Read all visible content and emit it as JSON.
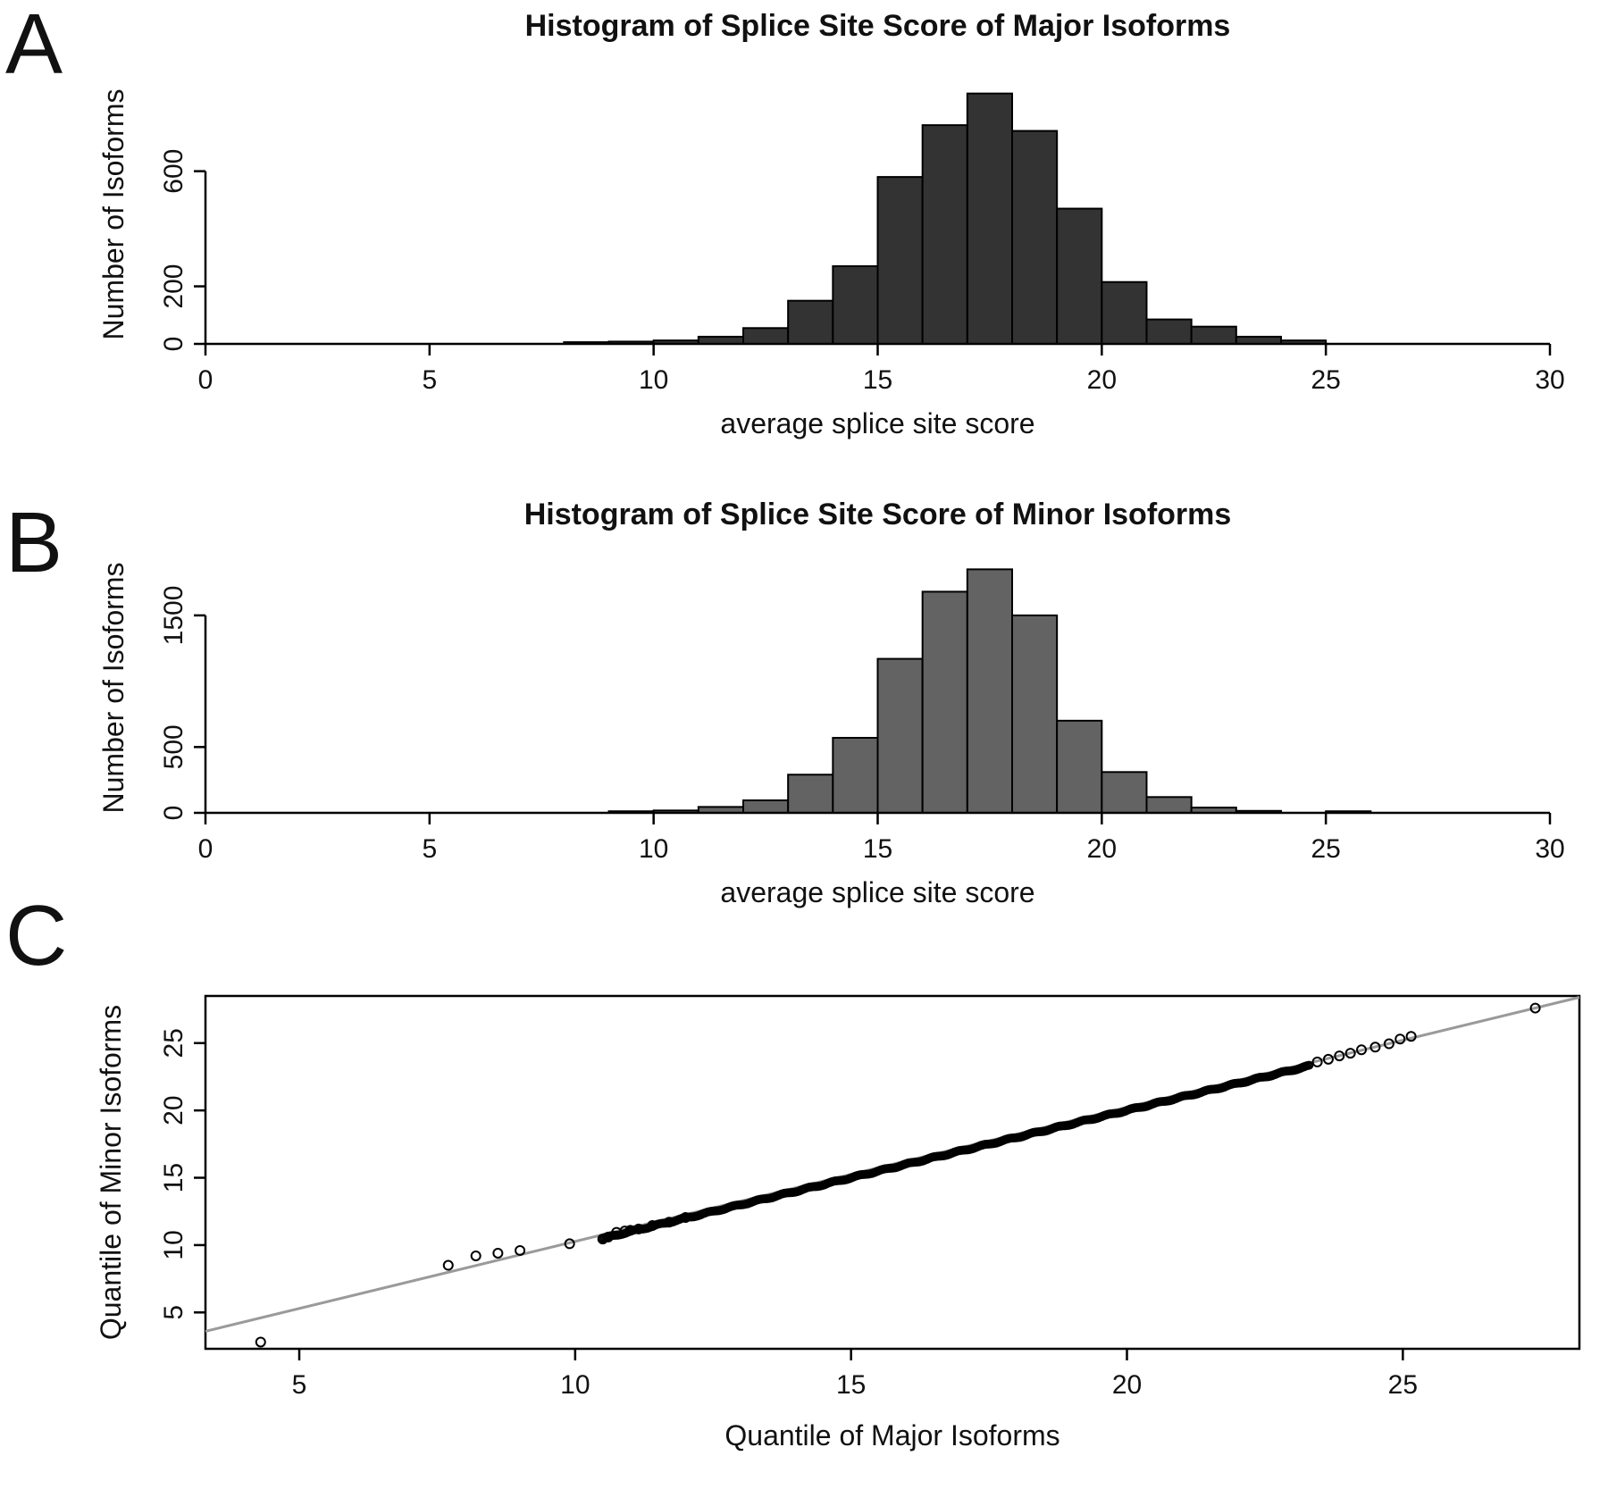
{
  "figure": {
    "background": "#ffffff",
    "text_color": "#111111",
    "panels": [
      {
        "label": "A"
      },
      {
        "label": "B"
      },
      {
        "label": "C"
      }
    ]
  },
  "chart_data": [
    {
      "type": "bar",
      "panel": "A",
      "title": "Histogram of Splice Site Score of Major Isoforms",
      "xlabel": "average splice site score",
      "ylabel": "Number of Isoforms",
      "bin_start": 8,
      "bin_width": 1,
      "values": [
        6,
        8,
        12,
        25,
        55,
        150,
        270,
        580,
        760,
        870,
        740,
        470,
        215,
        85,
        60,
        25,
        12
      ],
      "xlim": [
        0,
        30
      ],
      "ylim": [
        0,
        900
      ],
      "xticks": [
        0,
        5,
        10,
        15,
        20,
        25,
        30
      ],
      "yticks": [
        0,
        200,
        600
      ],
      "bar_color": "#333333",
      "bar_border": "#000000",
      "grid": false,
      "legend": "none"
    },
    {
      "type": "bar",
      "panel": "B",
      "title": "Histogram of Splice Site Score of Minor Isoforms",
      "xlabel": "average splice site score",
      "ylabel": "Number of Isoforms",
      "bin_start": 9,
      "bin_width": 1,
      "values": [
        12,
        18,
        45,
        95,
        290,
        570,
        1170,
        1680,
        1850,
        1500,
        700,
        310,
        120,
        40,
        15,
        0,
        12
      ],
      "xlim": [
        0,
        30
      ],
      "ylim": [
        0,
        1900
      ],
      "xticks": [
        0,
        5,
        10,
        15,
        20,
        25,
        30
      ],
      "yticks": [
        0,
        500,
        1500
      ],
      "bar_color": "#636363",
      "bar_border": "#000000",
      "grid": false,
      "legend": "none"
    },
    {
      "type": "scatter",
      "panel": "C",
      "title": "",
      "xlabel": "Quantile of Major Isoforms",
      "ylabel": "Quantile of Minor Isoforms",
      "xlim": [
        3.3,
        28.2
      ],
      "ylim": [
        2.3,
        28.5
      ],
      "xticks": [
        5,
        10,
        15,
        20,
        25
      ],
      "yticks": [
        5,
        10,
        15,
        20,
        25
      ],
      "reference_line": {
        "x1": 3.3,
        "y1": 3.6,
        "x2": 28.2,
        "y2": 28.4,
        "color": "#9a9a9a"
      },
      "dense_segment": {
        "x_from": 10.5,
        "x_to": 23.3,
        "relation": "y approx equals x",
        "count": 420
      },
      "points": [
        [
          4.3,
          2.8
        ],
        [
          7.7,
          8.5
        ],
        [
          8.2,
          9.2
        ],
        [
          8.6,
          9.4
        ],
        [
          9.0,
          9.6
        ],
        [
          9.9,
          10.1
        ],
        [
          10.5,
          10.45
        ],
        [
          10.6,
          10.6
        ],
        [
          10.75,
          10.95
        ],
        [
          10.9,
          11.05
        ],
        [
          11.0,
          11.1
        ],
        [
          11.15,
          11.2
        ],
        [
          11.4,
          11.45
        ],
        [
          11.7,
          11.7
        ],
        [
          12.0,
          12.05
        ],
        [
          23.45,
          23.6
        ],
        [
          23.65,
          23.8
        ],
        [
          23.85,
          24.05
        ],
        [
          24.05,
          24.25
        ],
        [
          24.25,
          24.5
        ],
        [
          24.5,
          24.7
        ],
        [
          24.75,
          24.95
        ],
        [
          24.95,
          25.3
        ],
        [
          25.15,
          25.5
        ],
        [
          27.4,
          27.6
        ]
      ],
      "point_style": {
        "marker": "open-circle",
        "color": "#000000"
      },
      "grid": false,
      "legend": "none"
    }
  ]
}
